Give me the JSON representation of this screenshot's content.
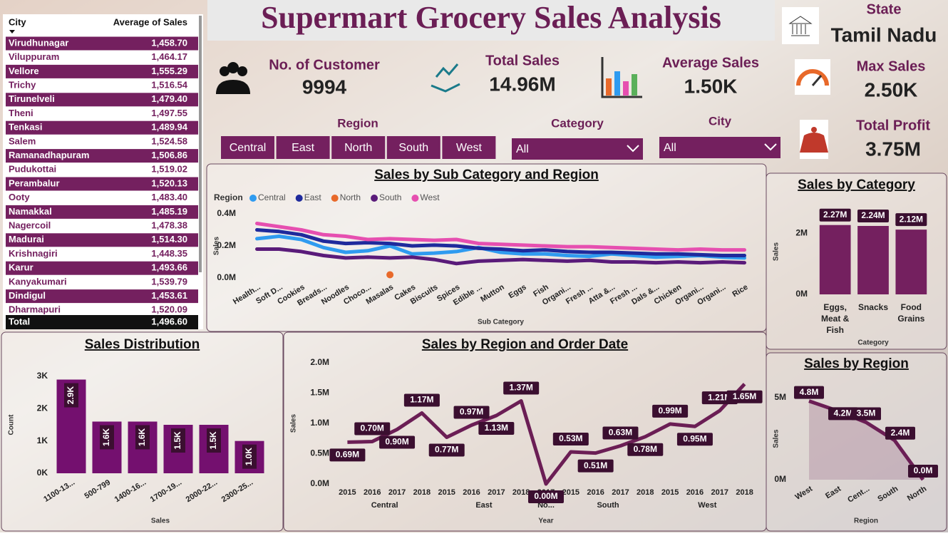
{
  "title": "Supermart Grocery Sales Analysis",
  "state": {
    "label": "State",
    "value": "Tamil Nadu"
  },
  "kpis": [
    {
      "label": "No. of Customer",
      "value": "9994"
    },
    {
      "label": "Total Sales",
      "value": "14.96M"
    },
    {
      "label": "Average Sales",
      "value": "1.50K"
    },
    {
      "label": "Max Sales",
      "value": "2.50K"
    },
    {
      "label": "Total Profit",
      "value": "3.75M"
    }
  ],
  "filters": {
    "region": {
      "label": "Region",
      "options": [
        "Central",
        "East",
        "North",
        "South",
        "West"
      ]
    },
    "category": {
      "label": "Category",
      "selected": "All"
    },
    "city": {
      "label": "City",
      "selected": "All"
    }
  },
  "table": {
    "columns": [
      "City",
      "Average of Sales"
    ],
    "rows": [
      [
        "Virudhunagar",
        "1,458.70"
      ],
      [
        "Viluppuram",
        "1,464.17"
      ],
      [
        "Vellore",
        "1,555.29"
      ],
      [
        "Trichy",
        "1,516.54"
      ],
      [
        "Tirunelveli",
        "1,479.40"
      ],
      [
        "Theni",
        "1,497.55"
      ],
      [
        "Tenkasi",
        "1,489.94"
      ],
      [
        "Salem",
        "1,524.58"
      ],
      [
        "Ramanadhapuram",
        "1,506.86"
      ],
      [
        "Pudukottai",
        "1,519.02"
      ],
      [
        "Perambalur",
        "1,520.13"
      ],
      [
        "Ooty",
        "1,483.40"
      ],
      [
        "Namakkal",
        "1,485.19"
      ],
      [
        "Nagercoil",
        "1,478.38"
      ],
      [
        "Madurai",
        "1,514.30"
      ],
      [
        "Krishnagiri",
        "1,448.35"
      ],
      [
        "Karur",
        "1,493.66"
      ],
      [
        "Kanyakumari",
        "1,539.79"
      ],
      [
        "Dindigul",
        "1,453.61"
      ],
      [
        "Dharmapuri",
        "1,520.09"
      ]
    ],
    "total": [
      "Total",
      "1,496.60"
    ]
  },
  "chart_data": [
    {
      "type": "line",
      "title": "Sales by Sub Category and Region",
      "legend_title": "Region",
      "x_label": "Sub Category",
      "y_label": "Sales",
      "categories": [
        "Health...",
        "Soft D...",
        "Cookies",
        "Breads...",
        "Noodles",
        "Choco...",
        "Masalas",
        "Cakes",
        "Biscuits",
        "Spices",
        "Edible ...",
        "Mutton",
        "Eggs",
        "Fish",
        "Organi...",
        "Fresh ...",
        "Atta &...",
        "Fresh ...",
        "Dals &...",
        "Chicken",
        "Organi...",
        "Organi...",
        "Rice"
      ],
      "series": [
        {
          "name": "Central",
          "color": "#2f9bf0",
          "values": [
            245000,
            260000,
            240000,
            190000,
            160000,
            170000,
            200000,
            150000,
            155000,
            165000,
            190000,
            160000,
            150000,
            150000,
            140000,
            135000,
            150000,
            140000,
            130000,
            135000,
            140000,
            130000,
            125000
          ]
        },
        {
          "name": "East",
          "color": "#1f2a9c",
          "values": [
            300000,
            290000,
            270000,
            230000,
            215000,
            220000,
            215000,
            200000,
            205000,
            200000,
            185000,
            180000,
            170000,
            175000,
            165000,
            160000,
            160000,
            155000,
            150000,
            150000,
            145000,
            140000,
            140000
          ]
        },
        {
          "name": "North",
          "color": "#e8692a",
          "values": [
            null,
            null,
            null,
            null,
            null,
            null,
            20000,
            null,
            null,
            null,
            null,
            null,
            null,
            null,
            null,
            null,
            null,
            null,
            null,
            null,
            null,
            null,
            null
          ]
        },
        {
          "name": "South",
          "color": "#5a1b7a",
          "values": [
            180000,
            180000,
            165000,
            140000,
            125000,
            130000,
            125000,
            130000,
            115000,
            90000,
            105000,
            110000,
            115000,
            110000,
            105000,
            110000,
            100000,
            100000,
            95000,
            100000,
            95000,
            100000,
            95000
          ]
        },
        {
          "name": "West",
          "color": "#e64fb0",
          "values": [
            340000,
            320000,
            300000,
            270000,
            260000,
            240000,
            245000,
            240000,
            235000,
            240000,
            215000,
            210000,
            205000,
            200000,
            195000,
            195000,
            190000,
            185000,
            180000,
            175000,
            180000,
            175000,
            175000
          ]
        }
      ],
      "ylim": [
        0,
        400000
      ],
      "yticks": [
        {
          "value": 0,
          "label": "0.0M"
        },
        {
          "value": 200000,
          "label": "0.2M"
        },
        {
          "value": 400000,
          "label": "0.4M"
        }
      ]
    },
    {
      "type": "bar",
      "title": "Sales by Category",
      "x_label": "Category",
      "y_label": "Sales",
      "categories": [
        "Eggs, Meat & Fish",
        "Snacks",
        "Food Grains"
      ],
      "values": [
        2270000,
        2240000,
        2120000
      ],
      "value_labels": [
        "2.27M",
        "2.24M",
        "2.12M"
      ],
      "color": "#74205f",
      "ylim": [
        0,
        2800000
      ],
      "yticks": [
        {
          "value": 0,
          "label": "0M"
        },
        {
          "value": 2000000,
          "label": "2M"
        }
      ]
    },
    {
      "type": "bar",
      "title": "Sales Distribution",
      "x_label": "Sales",
      "y_label": "Count",
      "categories": [
        "1100-13...",
        "500-799",
        "1400-16...",
        "1700-19...",
        "2000-22...",
        "2300-25..."
      ],
      "values": [
        2900,
        1600,
        1600,
        1500,
        1500,
        1000
      ],
      "value_labels": [
        "2.9K",
        "1.6K",
        "1.6K",
        "1.5K",
        "1.5K",
        "1.0K"
      ],
      "color": "#74106f",
      "ylim": [
        0,
        3000
      ],
      "yticks": [
        {
          "value": 0,
          "label": "0K"
        },
        {
          "value": 1000,
          "label": "1K"
        },
        {
          "value": 2000,
          "label": "2K"
        },
        {
          "value": 3000,
          "label": "3K"
        }
      ]
    },
    {
      "type": "line",
      "title": "Sales by Region and Order Date",
      "x_label": "Year",
      "y_label": "Sales",
      "color": "#6b1e55",
      "groups": [
        {
          "name": "Central",
          "categories": [
            "2015",
            "2016",
            "2017",
            "2018"
          ],
          "values": [
            690000,
            700000,
            900000,
            1170000
          ],
          "value_labels": [
            "0.69M",
            "0.70M",
            "0.90M",
            "1.17M"
          ]
        },
        {
          "name": "East",
          "categories": [
            "2015",
            "2016",
            "2017",
            "2018"
          ],
          "values": [
            770000,
            970000,
            1130000,
            1370000
          ],
          "value_labels": [
            "0.77M",
            "0.97M",
            "1.13M",
            "1.37M"
          ]
        },
        {
          "name": "No...",
          "categories": [
            "2017"
          ],
          "values": [
            0
          ],
          "value_labels": [
            "0.00M"
          ]
        },
        {
          "name": "South",
          "categories": [
            "2015",
            "2016",
            "2017",
            "2018"
          ],
          "values": [
            530000,
            510000,
            630000,
            780000
          ],
          "value_labels": [
            "0.53M",
            "0.51M",
            "0.63M",
            "0.78M"
          ]
        },
        {
          "name": "West",
          "categories": [
            "2015",
            "2016",
            "2017",
            "2018"
          ],
          "values": [
            990000,
            950000,
            1210000,
            1650000
          ],
          "value_labels": [
            "0.99M",
            "0.95M",
            "1.21M",
            "1.65M"
          ]
        }
      ],
      "ylim": [
        0,
        2000000
      ],
      "yticks": [
        {
          "value": 0,
          "label": "0.0M"
        },
        {
          "value": 500000,
          "label": "0.5M"
        },
        {
          "value": 1000000,
          "label": "1.0M"
        },
        {
          "value": 1500000,
          "label": "1.5M"
        },
        {
          "value": 2000000,
          "label": "2.0M"
        }
      ]
    },
    {
      "type": "line",
      "title": "Sales by Region",
      "x_label": "Region",
      "y_label": "Sales",
      "categories": [
        "West",
        "East",
        "Cent...",
        "South",
        "North"
      ],
      "values": [
        4800000,
        4200000,
        3500000,
        2400000,
        0
      ],
      "value_labels": [
        "4.8M",
        "4.2M",
        "3.5M",
        "2.4M",
        "0.0M"
      ],
      "color": "#6b1e55",
      "area": true,
      "ylim": [
        0,
        5000000
      ],
      "yticks": [
        {
          "value": 0,
          "label": "0M"
        },
        {
          "value": 5000000,
          "label": "5M"
        }
      ]
    }
  ]
}
